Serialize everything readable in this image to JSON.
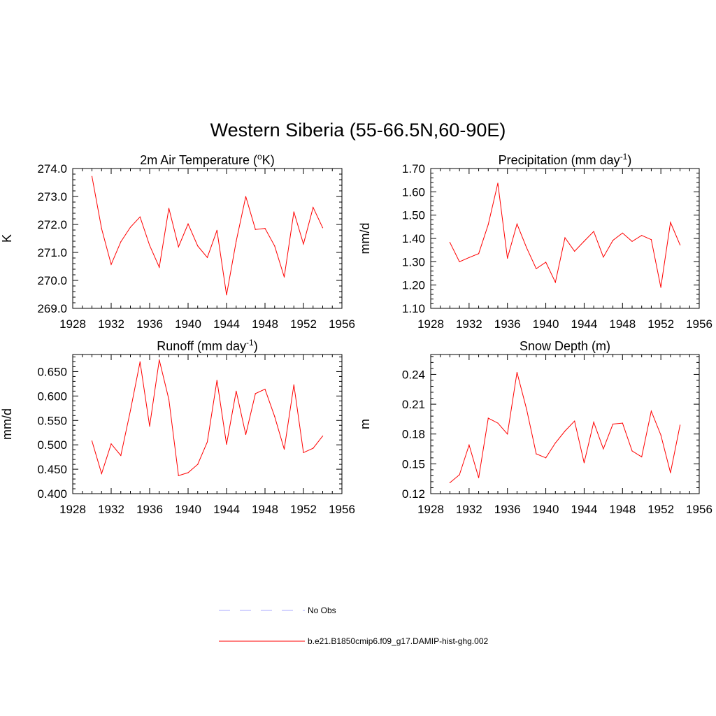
{
  "main_title": "Western Siberia (55-66.5N,60-90E)",
  "legend": [
    {
      "label": "No Obs",
      "color": "#aaaaff",
      "dash": true
    },
    {
      "label": "b.e21.B1850cmip6.f09_g17.DAMIP-hist-ghg.002",
      "color": "#ff0000",
      "dash": false
    }
  ],
  "chart_data": [
    {
      "type": "line",
      "title": "2m Air Temperature (",
      "title_sup": "o",
      "title_end": "K)",
      "ylabel": "K",
      "xlim": [
        1928,
        1956
      ],
      "ylim": [
        269.0,
        274.0
      ],
      "x_ticks": [
        1928,
        1932,
        1936,
        1940,
        1944,
        1948,
        1952,
        1956
      ],
      "y_ticks": [
        269.0,
        270.0,
        271.0,
        272.0,
        273.0,
        274.0
      ],
      "y_tick_labels": [
        "269.0",
        "270.0",
        "271.0",
        "272.0",
        "273.0",
        "274.0"
      ],
      "series": [
        {
          "color": "#ff0000",
          "x": [
            1930,
            1931,
            1932,
            1933,
            1934,
            1935,
            1936,
            1937,
            1938,
            1939,
            1940,
            1941,
            1942,
            1943,
            1944,
            1945,
            1946,
            1947,
            1948,
            1949,
            1950,
            1951,
            1952,
            1953,
            1954
          ],
          "values": [
            273.72,
            271.85,
            270.57,
            271.38,
            271.9,
            272.27,
            271.25,
            270.47,
            272.58,
            271.2,
            272.02,
            271.23,
            270.82,
            271.79,
            269.48,
            271.4,
            273.0,
            271.82,
            271.86,
            271.23,
            270.12,
            272.45,
            271.3,
            272.61,
            271.88
          ]
        }
      ]
    },
    {
      "type": "line",
      "title": "Precipitation (mm day",
      "title_sup": "-1",
      "title_end": ")",
      "ylabel": "mm/d",
      "xlim": [
        1928,
        1956
      ],
      "ylim": [
        1.1,
        1.7
      ],
      "x_ticks": [
        1928,
        1932,
        1936,
        1940,
        1944,
        1948,
        1952,
        1956
      ],
      "y_ticks": [
        1.1,
        1.2,
        1.3,
        1.4,
        1.5,
        1.6,
        1.7
      ],
      "y_tick_labels": [
        "1.10",
        "1.20",
        "1.30",
        "1.40",
        "1.50",
        "1.60",
        "1.70"
      ],
      "series": [
        {
          "color": "#ff0000",
          "x": [
            1930,
            1931,
            1932,
            1933,
            1934,
            1935,
            1936,
            1937,
            1938,
            1939,
            1940,
            1941,
            1942,
            1943,
            1944,
            1945,
            1946,
            1947,
            1948,
            1949,
            1950,
            1951,
            1952,
            1953,
            1954
          ],
          "values": [
            1.383,
            1.3,
            1.318,
            1.335,
            1.46,
            1.637,
            1.315,
            1.462,
            1.36,
            1.27,
            1.298,
            1.212,
            1.403,
            1.345,
            1.388,
            1.43,
            1.32,
            1.392,
            1.423,
            1.387,
            1.413,
            1.395,
            1.19,
            1.469,
            1.372
          ]
        }
      ]
    },
    {
      "type": "line",
      "title": "Runoff (mm day",
      "title_sup": "-1",
      "title_end": ")",
      "ylabel": "mm/d",
      "xlim": [
        1928,
        1956
      ],
      "ylim": [
        0.4,
        0.685
      ],
      "x_ticks": [
        1928,
        1932,
        1936,
        1940,
        1944,
        1948,
        1952,
        1956
      ],
      "y_ticks": [
        0.4,
        0.45,
        0.5,
        0.55,
        0.6,
        0.65
      ],
      "y_tick_labels": [
        "0.400",
        "0.450",
        "0.500",
        "0.550",
        "0.600",
        "0.650"
      ],
      "series": [
        {
          "color": "#ff0000",
          "x": [
            1930,
            1931,
            1932,
            1933,
            1934,
            1935,
            1936,
            1937,
            1938,
            1939,
            1940,
            1941,
            1942,
            1943,
            1944,
            1945,
            1946,
            1947,
            1948,
            1949,
            1950,
            1951,
            1952,
            1953,
            1954
          ],
          "values": [
            0.508,
            0.441,
            0.502,
            0.478,
            0.57,
            0.67,
            0.538,
            0.674,
            0.593,
            0.437,
            0.443,
            0.46,
            0.506,
            0.632,
            0.501,
            0.61,
            0.521,
            0.605,
            0.614,
            0.558,
            0.491,
            0.623,
            0.484,
            0.493,
            0.518
          ]
        }
      ]
    },
    {
      "type": "line",
      "title": "Snow Depth (m)",
      "title_sup": "",
      "title_end": "",
      "ylabel": "m",
      "xlim": [
        1928,
        1956
      ],
      "ylim": [
        0.12,
        0.26
      ],
      "x_ticks": [
        1928,
        1932,
        1936,
        1940,
        1944,
        1948,
        1952,
        1956
      ],
      "y_ticks": [
        0.12,
        0.15,
        0.18,
        0.21,
        0.24
      ],
      "y_tick_labels": [
        "0.12",
        "0.15",
        "0.18",
        "0.21",
        "0.24"
      ],
      "series": [
        {
          "color": "#ff0000",
          "x": [
            1930,
            1931,
            1932,
            1933,
            1934,
            1935,
            1936,
            1937,
            1938,
            1939,
            1940,
            1941,
            1942,
            1943,
            1944,
            1945,
            1946,
            1947,
            1948,
            1949,
            1950,
            1951,
            1952,
            1953,
            1954
          ],
          "values": [
            0.131,
            0.139,
            0.169,
            0.136,
            0.196,
            0.191,
            0.18,
            0.242,
            0.205,
            0.16,
            0.156,
            0.171,
            0.183,
            0.193,
            0.151,
            0.192,
            0.165,
            0.19,
            0.191,
            0.163,
            0.157,
            0.203,
            0.179,
            0.141,
            0.189
          ]
        }
      ]
    }
  ]
}
